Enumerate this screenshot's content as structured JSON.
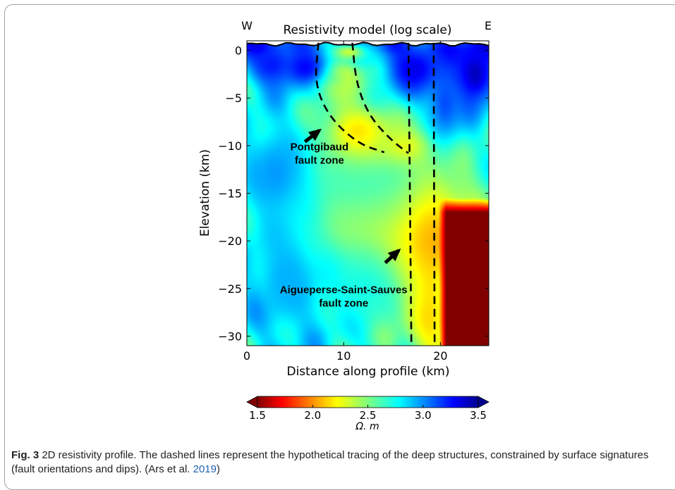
{
  "chart_data": {
    "type": "heatmap",
    "title": "Resistivity model (log scale)",
    "xlabel": "Distance along profile (km)",
    "ylabel": "Elevation (km)",
    "xlim": [
      0,
      25
    ],
    "ylim": [
      -31,
      1
    ],
    "xticks": [
      0,
      10,
      20
    ],
    "yticks": [
      0,
      -5,
      -10,
      -15,
      -20,
      -25,
      -30
    ],
    "corner_labels": {
      "left": "W",
      "right": "E"
    },
    "colorbar": {
      "label": "Ω. m",
      "ticks": [
        1.5,
        2.0,
        2.5,
        3.0,
        3.5
      ],
      "range": [
        1.5,
        3.5
      ],
      "colormap": "jet_reversed",
      "extend": "both"
    },
    "anomalies": [
      {
        "x": 9.2,
        "y": -3.0,
        "sx": 1.3,
        "sy": 0.8,
        "value": 1.7
      },
      {
        "x": 9.4,
        "y": -3.2,
        "sx": 2.6,
        "sy": 1.8,
        "value": 2.3
      },
      {
        "x": 10.5,
        "y": -0.2,
        "sx": 1.5,
        "sy": 0.7,
        "value": 2.3
      },
      {
        "x": 14.8,
        "y": -17.0,
        "sx": 3.3,
        "sy": 1.7,
        "value": 1.6
      },
      {
        "x": 14.0,
        "y": -18.0,
        "sx": 6.5,
        "sy": 3.8,
        "value": 2.0
      },
      {
        "x": 17.5,
        "y": -19.5,
        "sx": 3.5,
        "sy": 6.0,
        "value": 1.75
      },
      {
        "x": 12.5,
        "y": -13.0,
        "sx": 9.0,
        "sy": 6.0,
        "value": 2.6
      },
      {
        "x": 11.5,
        "y": -8.5,
        "sx": 2.5,
        "sy": 2.0,
        "value": 2.2
      },
      {
        "x": 19.0,
        "y": -25.0,
        "sx": 1.8,
        "sy": 5.5,
        "value": 2.0
      },
      {
        "x": 22.0,
        "y": -25.5,
        "sx": 1.5,
        "sy": 2.5,
        "value": 2.5
      },
      {
        "x": 12.0,
        "y": -25.0,
        "sx": 4.0,
        "sy": 4.0,
        "value": 2.7
      },
      {
        "x": 16.5,
        "y": -10.0,
        "sx": 2.0,
        "sy": 1.3,
        "value": 2.3
      },
      {
        "x": 2.5,
        "y": -1.5,
        "sx": 2.0,
        "sy": 1.8,
        "value": 3.2
      },
      {
        "x": 6.0,
        "y": -1.8,
        "sx": 1.8,
        "sy": 1.6,
        "value": 3.25
      },
      {
        "x": 23.5,
        "y": -2.5,
        "sx": 1.8,
        "sy": 2.5,
        "value": 3.4
      },
      {
        "x": 17.5,
        "y": -2.0,
        "sx": 2.5,
        "sy": 2.0,
        "value": 3.3
      },
      {
        "x": 20.5,
        "y": -5.5,
        "sx": 1.4,
        "sy": 3.0,
        "value": 3.1
      },
      {
        "x": 3.0,
        "y": -13.0,
        "sx": 2.5,
        "sy": 4.0,
        "value": 2.95
      },
      {
        "x": 4.0,
        "y": -24.0,
        "sx": 3.0,
        "sy": 5.0,
        "value": 2.9
      }
    ],
    "resistive_block": {
      "x_from": 19.8,
      "y_top": -15.5,
      "value": 1.5
    },
    "background_value": 2.75,
    "dashed_lines": [
      {
        "name": "Pontgibaud west",
        "points": [
          [
            7.4,
            0.8
          ],
          [
            7.0,
            -3.5
          ],
          [
            8.5,
            -7.0
          ],
          [
            11.5,
            -9.8
          ],
          [
            14.2,
            -10.7
          ]
        ]
      },
      {
        "name": "Pontgibaud east",
        "points": [
          [
            10.9,
            0.8
          ],
          [
            11.3,
            -3.5
          ],
          [
            12.7,
            -7.0
          ],
          [
            15.0,
            -9.5
          ],
          [
            16.7,
            -10.8
          ]
        ]
      },
      {
        "name": "Aigueperse west",
        "points": [
          [
            16.7,
            0.8
          ],
          [
            17.0,
            -31
          ]
        ]
      },
      {
        "name": "Aigueperse east",
        "points": [
          [
            19.3,
            0.8
          ],
          [
            19.4,
            -31
          ]
        ]
      }
    ],
    "annotations": [
      {
        "lines": [
          "Pontgibaud",
          "fault zone"
        ],
        "x": 7.5,
        "y": -10.5
      },
      {
        "lines": [
          "Aigueperse-Saint-Sauves",
          "fault zone"
        ],
        "x": 10.0,
        "y": -25.5
      }
    ]
  },
  "caption": {
    "label": "Fig. 3",
    "text": " 2D resistivity profile. The dashed lines represent the hypothetical tracing of the deep structures, constrained by surface signatures (fault orientations and dips). (Ars et al. ",
    "ref": "2019",
    "tail": ")"
  }
}
